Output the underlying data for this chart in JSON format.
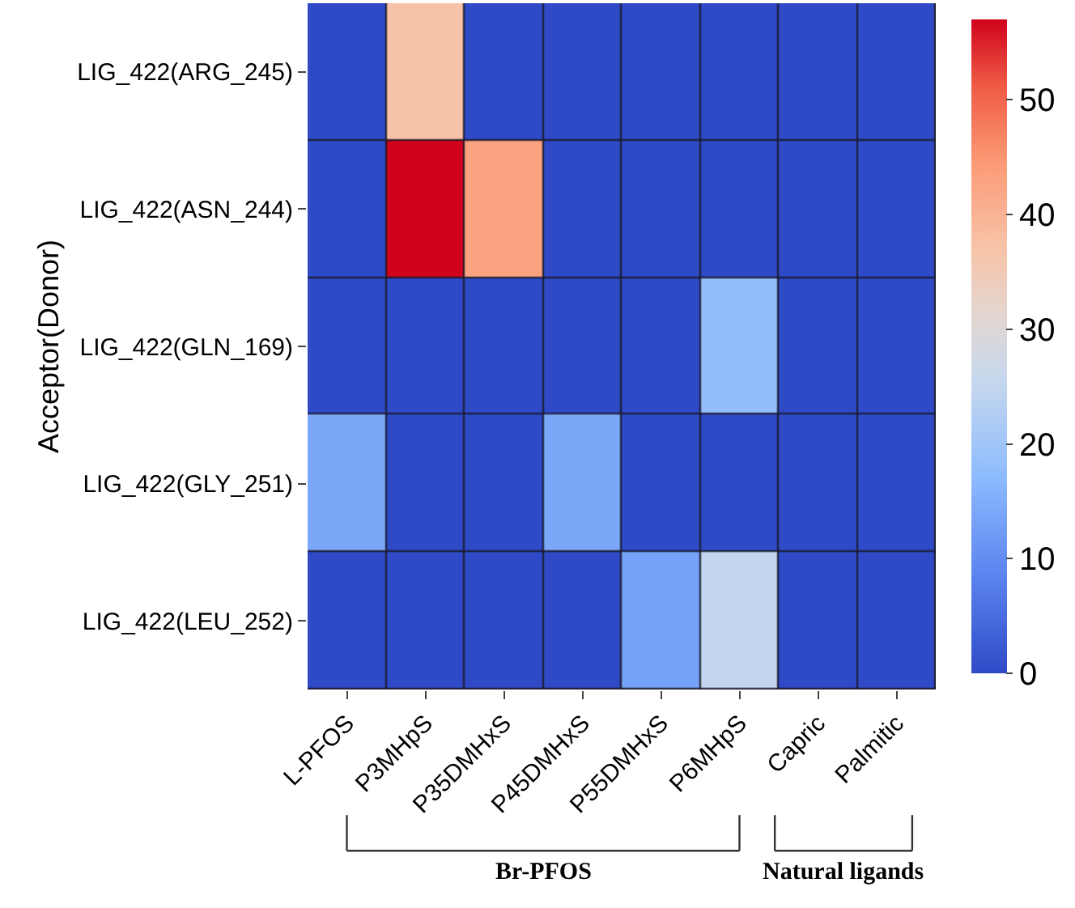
{
  "chart_data": {
    "type": "heatmap",
    "ylabel": "Acceptor(Donor)",
    "categories": [
      "L-PFOS",
      "P3MHpS",
      "P35DMHxS",
      "P45DMHxS",
      "P55DMHxS",
      "P6MHpS",
      "Capric",
      "Palmitic"
    ],
    "y_categories": [
      "LIG_422(ARG_245)",
      "LIG_422(ASN_244)",
      "LIG_422(GLN_169)",
      "LIG_422(GLY_251)",
      "LIG_422(LEU_252)"
    ],
    "cells": [
      [
        0,
        37,
        0,
        0,
        0,
        0,
        0,
        0
      ],
      [
        0,
        57,
        43,
        0,
        0,
        0,
        0,
        0
      ],
      [
        0,
        0,
        0,
        0,
        0,
        18,
        0,
        0
      ],
      [
        14,
        0,
        0,
        14,
        0,
        0,
        0,
        0
      ],
      [
        0,
        0,
        0,
        0,
        13,
        25,
        0,
        0
      ]
    ],
    "clim": [
      0,
      57
    ],
    "cticks": [
      0,
      10,
      20,
      30,
      40,
      50
    ],
    "annotations": [
      "Br-PFOS",
      "Natural ligands"
    ]
  }
}
